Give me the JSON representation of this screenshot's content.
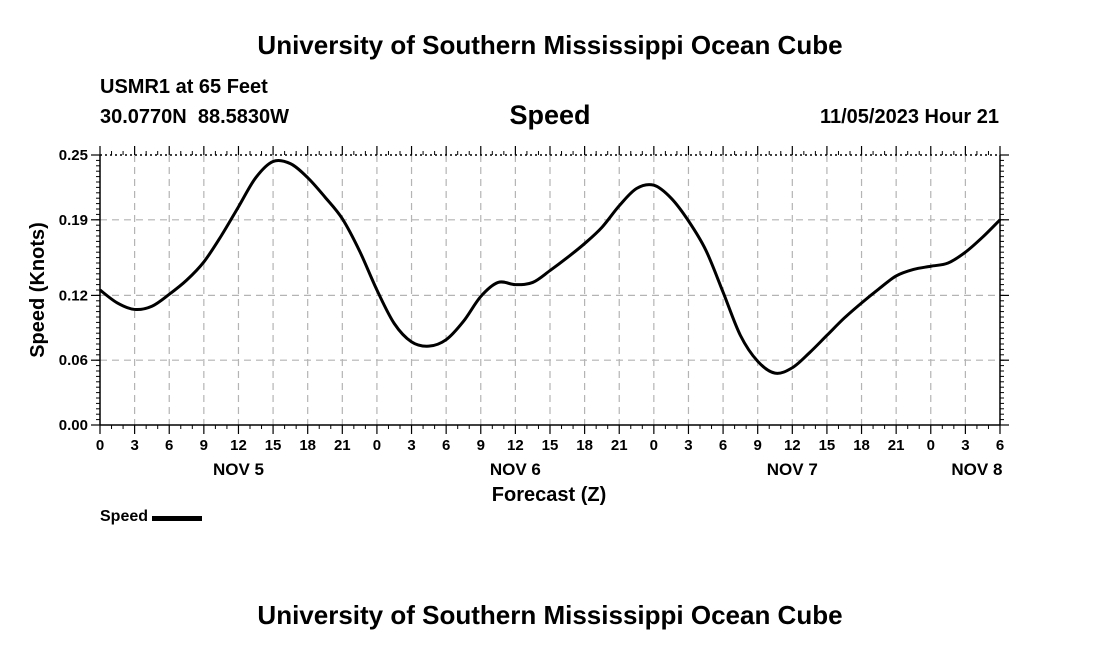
{
  "header": {
    "title": "University of Southern Mississippi Ocean Cube",
    "station": "USMR1 at 65 Feet",
    "coordinates": "30.0770N  88.5830W",
    "chart_title": "Speed",
    "datetime": "11/05/2023 Hour 21"
  },
  "footer": {
    "title": "University of Southern Mississippi Ocean Cube"
  },
  "legend": {
    "label": "Speed",
    "color": "#000000"
  },
  "chart_data": {
    "type": "line",
    "title": "Speed",
    "xlabel": "Forecast (Z)",
    "ylabel": "Speed (Knots)",
    "xlim": [
      0,
      78
    ],
    "ylim": [
      0,
      0.25
    ],
    "yticks": [
      0.0,
      0.06,
      0.12,
      0.19,
      0.25
    ],
    "ytick_labels": [
      "0.00",
      "0.06",
      "0.12",
      "0.19",
      "0.25"
    ],
    "xticks": [
      0,
      3,
      6,
      9,
      12,
      15,
      18,
      21,
      24,
      27,
      30,
      33,
      36,
      39,
      42,
      45,
      48,
      51,
      54,
      57,
      60,
      63,
      66,
      69,
      72,
      75,
      78
    ],
    "xtick_labels": [
      "0",
      "3",
      "6",
      "9",
      "12",
      "15",
      "18",
      "21",
      "0",
      "3",
      "6",
      "9",
      "12",
      "15",
      "18",
      "21",
      "0",
      "3",
      "6",
      "9",
      "12",
      "15",
      "18",
      "21",
      "0",
      "3",
      "6"
    ],
    "day_labels": [
      {
        "label": "NOV 5",
        "hour": 12
      },
      {
        "label": "NOV 6",
        "hour": 36
      },
      {
        "label": "NOV 7",
        "hour": 60
      },
      {
        "label": "NOV 8",
        "hour": 76
      }
    ],
    "grid": true,
    "legend_position": "bottom-left",
    "series": [
      {
        "name": "Speed",
        "x": [
          0,
          1.5,
          3,
          4.5,
          6,
          7.5,
          9,
          10.5,
          12,
          13.5,
          15,
          16.5,
          18,
          19.5,
          21,
          22.5,
          24,
          25.5,
          27,
          28.5,
          30,
          31.5,
          33,
          34.5,
          36,
          37.5,
          39,
          40.5,
          42,
          43.5,
          45,
          46.5,
          48,
          49.5,
          51,
          52.5,
          54,
          55.5,
          57,
          58.5,
          60,
          61.5,
          63,
          64.5,
          66,
          67.5,
          69,
          70.5,
          72,
          73.5,
          75,
          76.5,
          78
        ],
        "y": [
          0.125,
          0.113,
          0.107,
          0.11,
          0.121,
          0.134,
          0.151,
          0.175,
          0.202,
          0.229,
          0.244,
          0.242,
          0.229,
          0.211,
          0.191,
          0.161,
          0.125,
          0.094,
          0.077,
          0.073,
          0.079,
          0.096,
          0.119,
          0.132,
          0.13,
          0.132,
          0.143,
          0.155,
          0.168,
          0.183,
          0.203,
          0.219,
          0.222,
          0.21,
          0.189,
          0.162,
          0.123,
          0.083,
          0.059,
          0.048,
          0.053,
          0.067,
          0.083,
          0.099,
          0.113,
          0.126,
          0.138,
          0.144,
          0.147,
          0.15,
          0.16,
          0.174,
          0.19
        ]
      }
    ]
  }
}
